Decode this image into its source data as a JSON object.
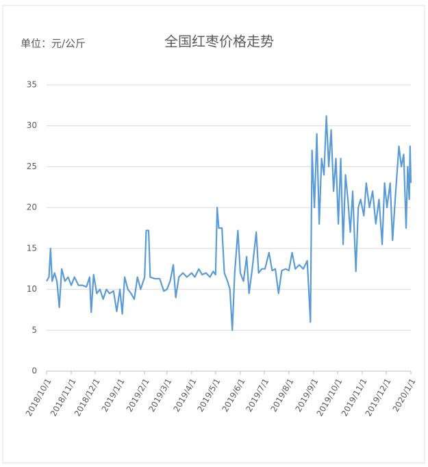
{
  "chart_data": {
    "type": "line",
    "title": "全国红枣价格走势",
    "unit_label": "单位：元/公斤",
    "x": [
      "2018/10/1",
      "2018/10/4",
      "2018/10/6",
      "2018/10/8",
      "2018/10/11",
      "2018/10/14",
      "2018/10/17",
      "2018/10/20",
      "2018/10/24",
      "2018/10/28",
      "2018/11/1",
      "2018/11/5",
      "2018/11/10",
      "2018/11/15",
      "2018/11/20",
      "2018/11/24",
      "2018/11/26",
      "2018/11/29",
      "2018/12/3",
      "2018/12/7",
      "2018/12/11",
      "2018/12/15",
      "2018/12/19",
      "2018/12/24",
      "2018/12/28",
      "2019/1/1",
      "2019/1/4",
      "2019/1/7",
      "2019/1/11",
      "2019/1/15",
      "2019/1/19",
      "2019/1/23",
      "2019/1/27",
      "2019/2/1",
      "2019/2/3",
      "2019/2/6",
      "2019/2/8",
      "2019/2/14",
      "2019/2/20",
      "2019/2/25",
      "2019/3/1",
      "2019/3/5",
      "2019/3/9",
      "2019/3/12",
      "2019/3/16",
      "2019/3/21",
      "2019/3/26",
      "2019/4/1",
      "2019/4/5",
      "2019/4/10",
      "2019/4/14",
      "2019/4/19",
      "2019/4/24",
      "2019/4/28",
      "2019/5/1",
      "2019/5/3",
      "2019/5/5",
      "2019/5/9",
      "2019/5/12",
      "2019/5/16",
      "2019/5/19",
      "2019/5/22",
      "2019/5/25",
      "2019/5/29",
      "2019/6/1",
      "2019/6/5",
      "2019/6/9",
      "2019/6/12",
      "2019/6/16",
      "2019/6/21",
      "2019/6/24",
      "2019/6/28",
      "2019/7/2",
      "2019/7/7",
      "2019/7/11",
      "2019/7/15",
      "2019/7/19",
      "2019/7/23",
      "2019/7/28",
      "2019/8/1",
      "2019/8/5",
      "2019/8/9",
      "2019/8/14",
      "2019/8/19",
      "2019/8/24",
      "2019/8/28",
      "2019/8/30",
      "2019/9/2",
      "2019/9/5",
      "2019/9/8",
      "2019/9/11",
      "2019/9/14",
      "2019/9/17",
      "2019/9/20",
      "2019/9/23",
      "2019/9/26",
      "2019/9/29",
      "2019/10/2",
      "2019/10/5",
      "2019/10/8",
      "2019/10/11",
      "2019/10/14",
      "2019/10/17",
      "2019/10/20",
      "2019/10/24",
      "2019/10/27",
      "2019/10/30",
      "2019/11/3",
      "2019/11/6",
      "2019/11/10",
      "2019/11/14",
      "2019/11/18",
      "2019/11/22",
      "2019/11/26",
      "2019/11/29",
      "2019/12/2",
      "2019/12/6",
      "2019/12/9",
      "2019/12/13",
      "2019/12/17",
      "2019/12/20",
      "2019/12/23",
      "2019/12/26",
      "2019/12/28",
      "2019/12/30",
      "2019/12/31",
      "2020/1/1"
    ],
    "series": [
      {
        "color": "#5b9bd5",
        "values": [
          11,
          11.5,
          15,
          11,
          12,
          11,
          7.8,
          12.5,
          11,
          11.5,
          10.5,
          11.5,
          10.5,
          10.5,
          10.3,
          11.5,
          7.2,
          11.8,
          9.5,
          10,
          8.8,
          10,
          9.5,
          9.8,
          7.3,
          10,
          7,
          11.5,
          10,
          9.5,
          8.8,
          11.5,
          10,
          11.5,
          17.2,
          17.2,
          11.5,
          11.3,
          11.3,
          9.8,
          10,
          11,
          13,
          9,
          11.5,
          12,
          11.5,
          12,
          11.5,
          12.5,
          11.8,
          12,
          11.5,
          12.2,
          11.8,
          20,
          17.5,
          17.5,
          12,
          11,
          10,
          5,
          12,
          17.2,
          12,
          11,
          14,
          9.5,
          12.5,
          17,
          12,
          12.5,
          12.5,
          14.5,
          12.3,
          12.5,
          9.5,
          12.3,
          12.5,
          12.3,
          14.5,
          12.5,
          13,
          12.5,
          13.5,
          6,
          27,
          20,
          29,
          18,
          26,
          24,
          31.2,
          25,
          29.5,
          22,
          26,
          18,
          26,
          15.5,
          24,
          21,
          17,
          22,
          12.2,
          20,
          21,
          19,
          23,
          20,
          22,
          18,
          21,
          15.5,
          23,
          20,
          23,
          16,
          22,
          27.5,
          25,
          26.5,
          17.5,
          25,
          21,
          27.5,
          23
        ]
      }
    ],
    "xticks": [
      "2018/10/1",
      "2018/11/1",
      "2018/12/1",
      "2019/1/1",
      "2019/2/1",
      "2019/3/1",
      "2019/4/1",
      "2019/5/1",
      "2019/6/1",
      "2019/7/1",
      "2019/8/1",
      "2019/9/1",
      "2019/10/1",
      "2019/11/1",
      "2019/12/1",
      "2020/1/1"
    ],
    "ylim": [
      0,
      35
    ],
    "yticks": [
      0,
      5,
      10,
      15,
      20,
      25,
      30,
      35
    ],
    "grid": true
  }
}
